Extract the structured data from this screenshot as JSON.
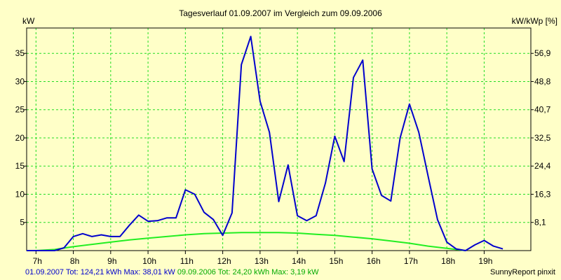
{
  "chart_data": {
    "type": "line",
    "title": "Tagesverlauf 01.09.2007 im Vergleich zum 09.09.2006",
    "ylabel_left": "kW",
    "ylabel_right": "kW/kWp [%]",
    "xlim": [
      6.75,
      20.25
    ],
    "ylim": [
      0,
      39.5
    ],
    "x_ticks": [
      {
        "x": 7,
        "label": "7h"
      },
      {
        "x": 8,
        "label": "8h"
      },
      {
        "x": 9,
        "label": "9h"
      },
      {
        "x": 10,
        "label": "10h"
      },
      {
        "x": 11,
        "label": "11h"
      },
      {
        "x": 12,
        "label": "12h"
      },
      {
        "x": 13,
        "label": "13h"
      },
      {
        "x": 14,
        "label": "14h"
      },
      {
        "x": 15,
        "label": "15h"
      },
      {
        "x": 16,
        "label": "16h"
      },
      {
        "x": 17,
        "label": "17h"
      },
      {
        "x": 18,
        "label": "18h"
      },
      {
        "x": 19,
        "label": "19h"
      }
    ],
    "y_ticks_left": [
      {
        "y": 5,
        "label": "5"
      },
      {
        "y": 10,
        "label": "10"
      },
      {
        "y": 15,
        "label": "15"
      },
      {
        "y": 20,
        "label": "20"
      },
      {
        "y": 25,
        "label": "25"
      },
      {
        "y": 30,
        "label": "30"
      },
      {
        "y": 35,
        "label": "35"
      }
    ],
    "y_ticks_right": [
      {
        "y": 5,
        "label": "8,1"
      },
      {
        "y": 10,
        "label": "16,3"
      },
      {
        "y": 15,
        "label": "24,4"
      },
      {
        "y": 20,
        "label": "32,5"
      },
      {
        "y": 25,
        "label": "40,7"
      },
      {
        "y": 30,
        "label": "48,8"
      },
      {
        "y": 35,
        "label": "56,9"
      }
    ],
    "series": [
      {
        "name": "01.09.2007",
        "color": "#0000cc",
        "x": [
          6.75,
          7.0,
          7.25,
          7.5,
          7.75,
          8.0,
          8.25,
          8.5,
          8.75,
          9.0,
          9.25,
          9.5,
          9.75,
          10.0,
          10.25,
          10.5,
          10.75,
          11.0,
          11.25,
          11.5,
          11.75,
          12.0,
          12.25,
          12.5,
          12.75,
          13.0,
          13.25,
          13.5,
          13.75,
          14.0,
          14.25,
          14.5,
          14.75,
          15.0,
          15.25,
          15.5,
          15.75,
          16.0,
          16.25,
          16.5,
          16.75,
          17.0,
          17.25,
          17.5,
          17.75,
          18.0,
          18.25,
          18.5,
          18.75,
          19.0,
          19.25,
          19.5
        ],
        "values": [
          0,
          0,
          0,
          0,
          0.5,
          2.5,
          3,
          2.5,
          2.8,
          2.5,
          2.5,
          4.5,
          6.3,
          5.2,
          5.3,
          5.8,
          5.8,
          10.8,
          10,
          6.8,
          5.5,
          2.7,
          6.7,
          33,
          38,
          26.5,
          21,
          8.7,
          15.2,
          6.2,
          5.3,
          6.2,
          12,
          20.3,
          15.8,
          30.7,
          33.8,
          14.5,
          9.8,
          8.8,
          20,
          26,
          21,
          13.2,
          5.5,
          1.5,
          0.3,
          0,
          1,
          1.8,
          0.8,
          0.3
        ]
      },
      {
        "name": "09.09.2006",
        "color": "#22ee22",
        "x": [
          7.0,
          7.5,
          8.0,
          8.5,
          9.0,
          9.5,
          10.0,
          10.5,
          11.0,
          11.5,
          12.0,
          12.5,
          13.0,
          13.5,
          14.0,
          14.5,
          15.0,
          15.5,
          16.0,
          16.5,
          17.0,
          17.5,
          18.0,
          18.5
        ],
        "values": [
          0,
          0.2,
          0.7,
          1.1,
          1.5,
          1.9,
          2.2,
          2.5,
          2.8,
          3.0,
          3.1,
          3.2,
          3.2,
          3.2,
          3.1,
          2.9,
          2.7,
          2.4,
          2.1,
          1.7,
          1.3,
          0.8,
          0.4,
          0
        ]
      }
    ]
  },
  "footer": {
    "series1_text": "01.09.2007 Tot: 124,21 kWh Max: 38,01 kW",
    "series2_text": "09.09.2006 Tot: 24,20 kWh Max: 3,19 kW",
    "credit": "SunnyReport pinxit"
  }
}
